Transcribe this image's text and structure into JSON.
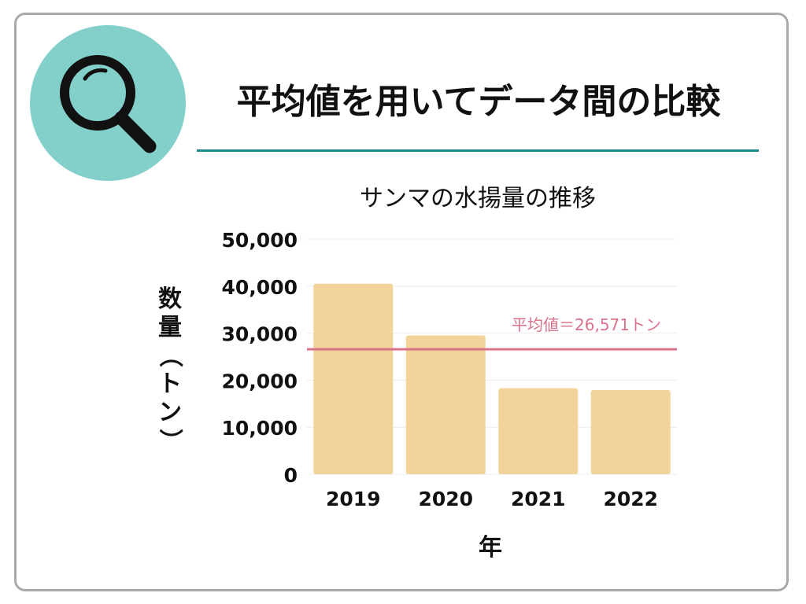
{
  "page": {
    "title": "平均値を用いてデータ間の比較",
    "icon": "magnifying-glass-icon",
    "accent_color": "#83d0cb",
    "rule_color": "#1a8a8c"
  },
  "chart_data": {
    "type": "bar",
    "title": "サンマの水揚量の推移",
    "xlabel": "年",
    "ylabel": "数量（トン）",
    "categories": [
      "2019",
      "2020",
      "2021",
      "2022"
    ],
    "values": [
      40500,
      29500,
      18300,
      17900
    ],
    "ylim": [
      0,
      50000
    ],
    "yticks": [
      "0",
      "10,000",
      "20,000",
      "30,000",
      "40,000",
      "50,000"
    ],
    "ytick_values": [
      0,
      10000,
      20000,
      30000,
      40000,
      50000
    ],
    "bar_color": "#f2d49b",
    "grid": true,
    "reference_line": {
      "value": 26571,
      "label": "平均値＝26,571トン",
      "color": "#d9728a"
    }
  }
}
